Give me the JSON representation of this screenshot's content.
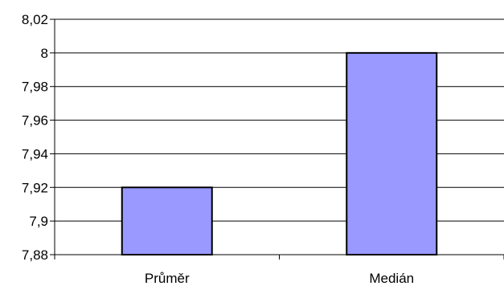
{
  "chart_data": {
    "type": "bar",
    "categories": [
      "Průměr",
      "Medián"
    ],
    "values": [
      7.92,
      8.0
    ],
    "ylim": [
      7.88,
      8.02
    ],
    "yticks": [
      "7,88",
      "7,9",
      "7,92",
      "7,94",
      "7,96",
      "7,98",
      "8",
      "8,02"
    ],
    "ytick_values": [
      7.88,
      7.9,
      7.92,
      7.94,
      7.96,
      7.98,
      8.0,
      8.02
    ],
    "grid": true,
    "bar_color": "#9999ff",
    "bar_edge_color": "#000000"
  }
}
